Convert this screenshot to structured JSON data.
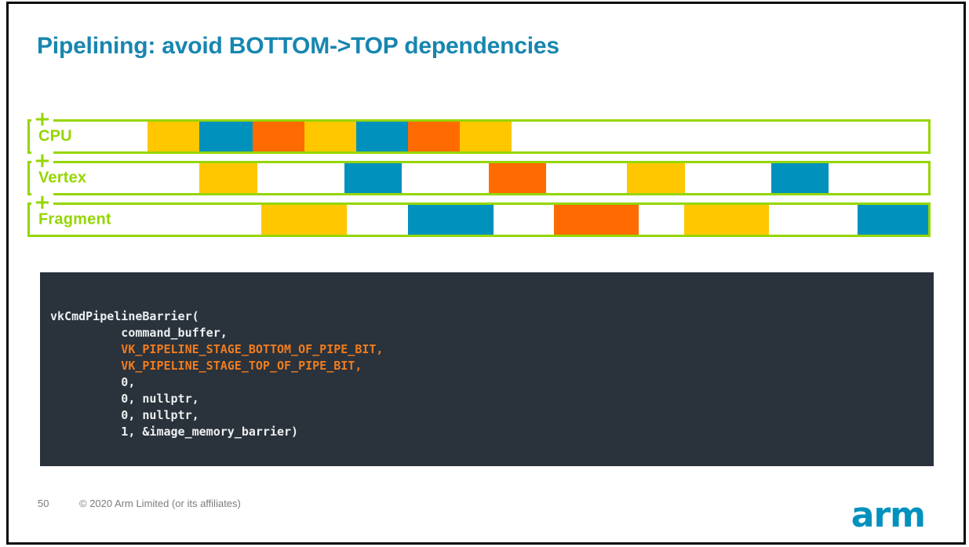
{
  "slide": {
    "title": "Pipelining: avoid BOTTOM->TOP dependencies",
    "page_number": "50",
    "copyright": "© 2020 Arm Limited (or its affiliates)",
    "logo_text": "arm"
  },
  "icons": {
    "plus_marker": "+"
  },
  "colors": {
    "title": "#1786b0",
    "lime_green": "#95d600",
    "work_yellow": "#ffc700",
    "work_blue": "#0091bd",
    "work_orange": "#ff6b00",
    "code_background": "#2a323c",
    "code_text": "#eceff1",
    "code_highlight": "#f07c1e",
    "footer_text": "#7d7d7d",
    "logo_blue": "#0091bd",
    "frame_border": "#0a0a0a"
  },
  "timeline": {
    "rows": [
      {
        "label": "CPU",
        "blocks": [
          {
            "color": "work_yellow",
            "left_pct": 13.1,
            "width_pct": 5.8
          },
          {
            "color": "work_blue",
            "left_pct": 18.9,
            "width_pct": 5.9
          },
          {
            "color": "work_orange",
            "left_pct": 24.8,
            "width_pct": 5.8
          },
          {
            "color": "work_yellow",
            "left_pct": 30.6,
            "width_pct": 5.7
          },
          {
            "color": "work_blue",
            "left_pct": 36.3,
            "width_pct": 5.8
          },
          {
            "color": "work_orange",
            "left_pct": 42.1,
            "width_pct": 5.8
          },
          {
            "color": "work_yellow",
            "left_pct": 47.9,
            "width_pct": 5.7
          }
        ]
      },
      {
        "label": "Vertex",
        "blocks": [
          {
            "color": "work_yellow",
            "left_pct": 18.9,
            "width_pct": 6.4
          },
          {
            "color": "work_blue",
            "left_pct": 35.0,
            "width_pct": 6.4
          },
          {
            "color": "work_orange",
            "left_pct": 51.1,
            "width_pct": 6.4
          },
          {
            "color": "work_yellow",
            "left_pct": 66.5,
            "width_pct": 6.4
          },
          {
            "color": "work_blue",
            "left_pct": 82.5,
            "width_pct": 6.4
          }
        ]
      },
      {
        "label": "Fragment",
        "blocks": [
          {
            "color": "work_yellow",
            "left_pct": 25.8,
            "width_pct": 9.5
          },
          {
            "color": "work_blue",
            "left_pct": 42.1,
            "width_pct": 9.5
          },
          {
            "color": "work_orange",
            "left_pct": 58.3,
            "width_pct": 9.5
          },
          {
            "color": "work_yellow",
            "left_pct": 72.8,
            "width_pct": 9.5
          },
          {
            "color": "work_blue",
            "left_pct": 92.1,
            "width_pct": 7.9
          }
        ]
      }
    ]
  },
  "code": {
    "lines": [
      {
        "text": "vkCmdPipelineBarrier(",
        "highlight": false
      },
      {
        "text": "          command_buffer,",
        "highlight": false
      },
      {
        "text": "          VK_PIPELINE_STAGE_BOTTOM_OF_PIPE_BIT,",
        "highlight": true
      },
      {
        "text": "          VK_PIPELINE_STAGE_TOP_OF_PIPE_BIT,",
        "highlight": true
      },
      {
        "text": "          0,",
        "highlight": false
      },
      {
        "text": "          0, nullptr,",
        "highlight": false
      },
      {
        "text": "          0, nullptr,",
        "highlight": false
      },
      {
        "text": "          1, &image_memory_barrier)",
        "highlight": false
      }
    ]
  }
}
